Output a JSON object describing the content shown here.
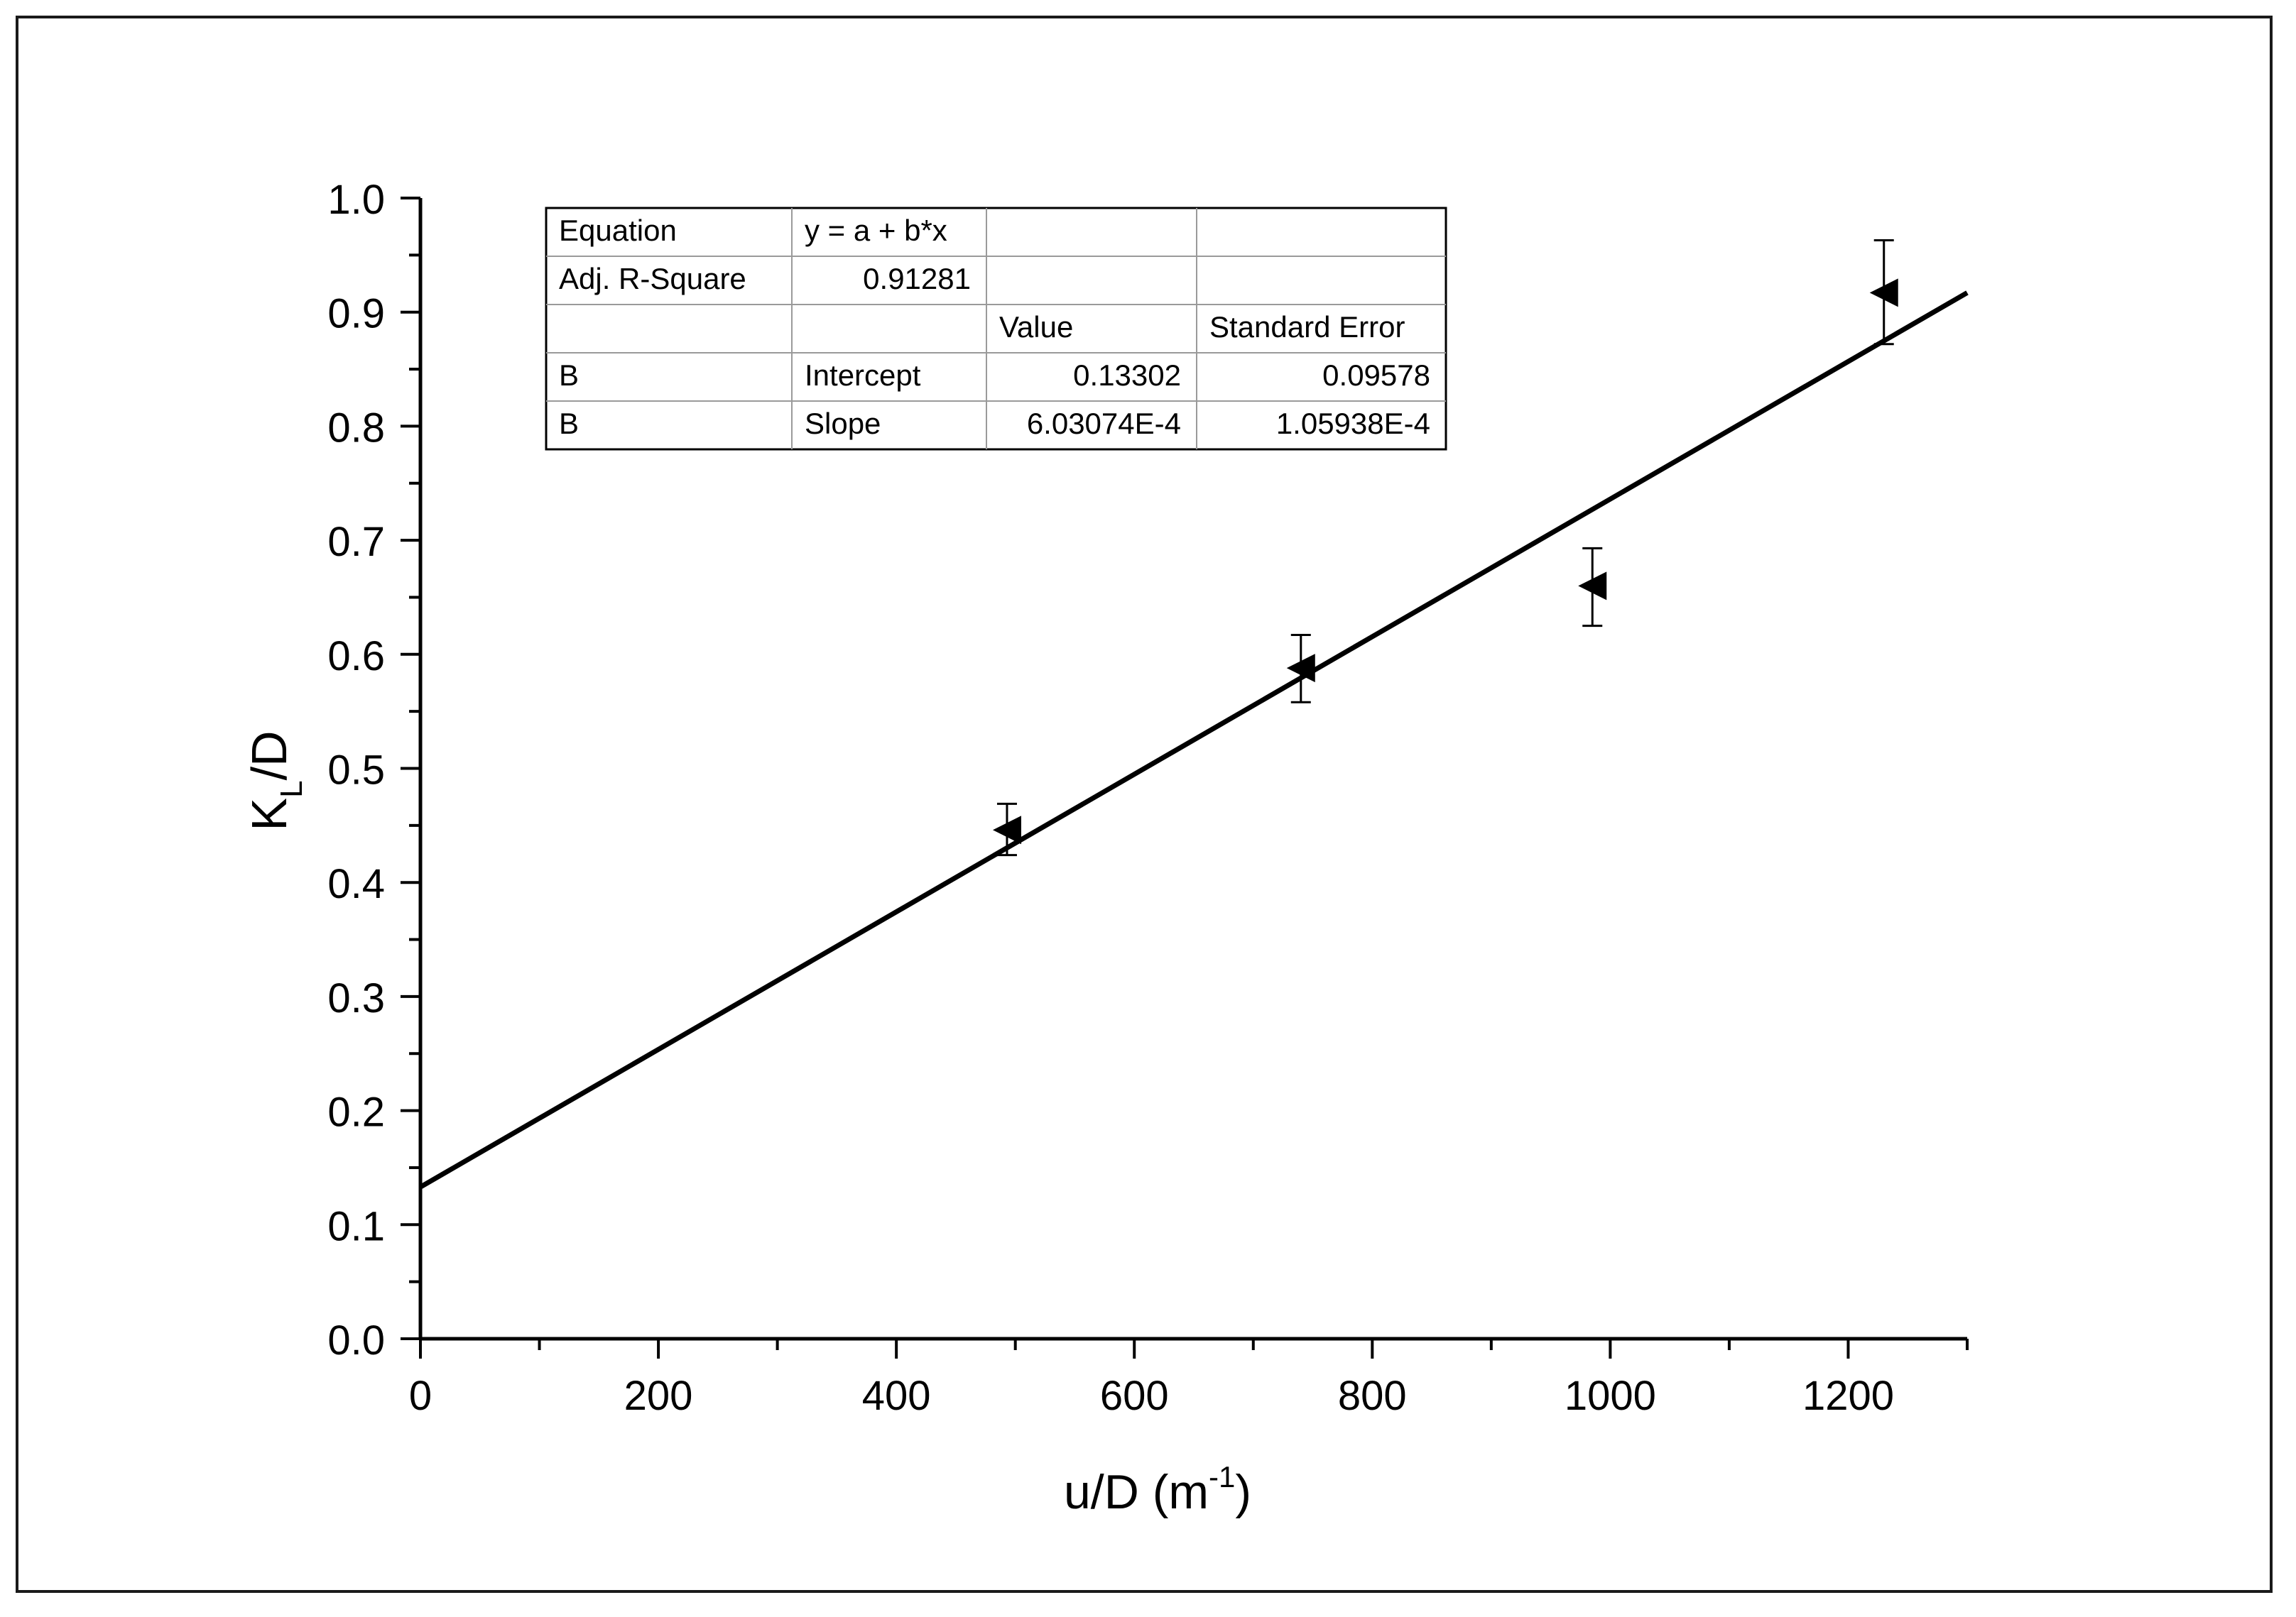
{
  "chart_data": {
    "type": "scatter",
    "xlabel": "u/D (m",
    "xlabel_sup": "-1",
    "xlabel_end": ")",
    "ylabel_main": "K",
    "ylabel_sub": "L",
    "ylabel_end": "/D",
    "xlim": [
      0,
      1300
    ],
    "ylim": [
      0,
      1.0
    ],
    "x_ticks": [
      0,
      200,
      400,
      600,
      800,
      1000,
      1200
    ],
    "x_tick_labels": [
      "0",
      "200",
      "400",
      "600",
      "800",
      "1000",
      "1200"
    ],
    "y_ticks": [
      0,
      0.1,
      0.2,
      0.3,
      0.4,
      0.5,
      0.6,
      0.7,
      0.8,
      0.9,
      1.0
    ],
    "y_tick_labels": [
      "0.0",
      "0.1",
      "0.2",
      "0.3",
      "0.4",
      "0.5",
      "0.6",
      "0.7",
      "0.8",
      "0.9",
      "1.0"
    ],
    "grid": false,
    "marker": "left-triangle",
    "series": [
      {
        "points": [
          {
            "x": 493,
            "y": 0.446,
            "err_low": 0.022,
            "err_high": 0.023
          },
          {
            "x": 740,
            "y": 0.588,
            "err_low": 0.03,
            "err_high": 0.029
          },
          {
            "x": 985,
            "y": 0.66,
            "err_low": 0.035,
            "err_high": 0.033
          },
          {
            "x": 1230,
            "y": 0.917,
            "err_low": 0.045,
            "err_high": 0.046
          }
        ]
      }
    ],
    "fit": {
      "intercept": 0.13302,
      "slope": 0.000603074,
      "x_range": [
        0,
        1300
      ]
    },
    "fit_table": {
      "rows": [
        [
          "Equation",
          "y = a + b*x",
          "",
          ""
        ],
        [
          "Adj. R-Square",
          "0.91281",
          "",
          ""
        ],
        [
          "",
          "",
          "Value",
          "Standard Error"
        ],
        [
          "B",
          "Intercept",
          "0.13302",
          "0.09578"
        ],
        [
          "B",
          "Slope",
          "6.03074E-4",
          "1.05938E-4"
        ]
      ]
    }
  }
}
